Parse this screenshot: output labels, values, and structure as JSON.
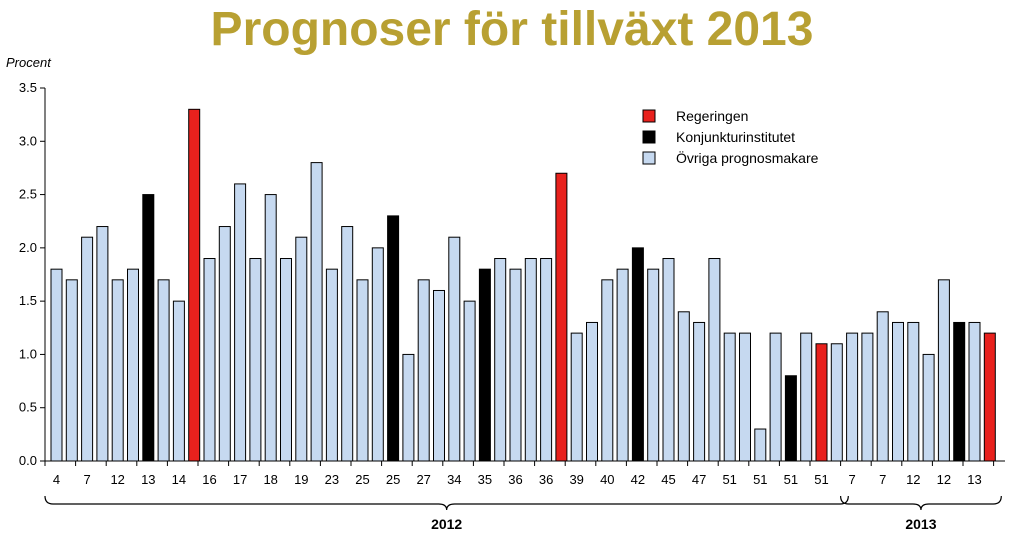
{
  "page": {
    "title": "Prognoser för tillväxt 2013"
  },
  "chart_data": {
    "type": "bar",
    "title": "Prognoser för tillväxt 2013",
    "ylabel": "Procent",
    "ylim": [
      0,
      3.5
    ],
    "yticks": [
      "0.0",
      "0.5",
      "1.0",
      "1.5",
      "2.0",
      "2.5",
      "3.0",
      "3.5"
    ],
    "colors": {
      "regeringen": "#e8211d",
      "ki": "#000000",
      "ovriga": "#c6d9f0"
    },
    "legend": [
      {
        "label": "Regeringen",
        "kind": "regeringen"
      },
      {
        "label": "Konjunkturinstitutet",
        "kind": "ki"
      },
      {
        "label": "Övriga prognosmakare",
        "kind": "ovriga"
      }
    ],
    "bars": [
      {
        "value": 1.8,
        "kind": "ovriga"
      },
      {
        "value": 1.7,
        "kind": "ovriga"
      },
      {
        "value": 2.1,
        "kind": "ovriga"
      },
      {
        "value": 2.2,
        "kind": "ovriga"
      },
      {
        "value": 1.7,
        "kind": "ovriga"
      },
      {
        "value": 1.8,
        "kind": "ovriga"
      },
      {
        "value": 2.5,
        "kind": "ki"
      },
      {
        "value": 1.7,
        "kind": "ovriga"
      },
      {
        "value": 1.5,
        "kind": "ovriga"
      },
      {
        "value": 3.3,
        "kind": "regeringen"
      },
      {
        "value": 1.9,
        "kind": "ovriga"
      },
      {
        "value": 2.2,
        "kind": "ovriga"
      },
      {
        "value": 2.6,
        "kind": "ovriga"
      },
      {
        "value": 1.9,
        "kind": "ovriga"
      },
      {
        "value": 2.5,
        "kind": "ovriga"
      },
      {
        "value": 1.9,
        "kind": "ovriga"
      },
      {
        "value": 2.1,
        "kind": "ovriga"
      },
      {
        "value": 2.8,
        "kind": "ovriga"
      },
      {
        "value": 1.8,
        "kind": "ovriga"
      },
      {
        "value": 2.2,
        "kind": "ovriga"
      },
      {
        "value": 1.7,
        "kind": "ovriga"
      },
      {
        "value": 2.0,
        "kind": "ovriga"
      },
      {
        "value": 2.3,
        "kind": "ki"
      },
      {
        "value": 1.0,
        "kind": "ovriga"
      },
      {
        "value": 1.7,
        "kind": "ovriga"
      },
      {
        "value": 1.6,
        "kind": "ovriga"
      },
      {
        "value": 2.1,
        "kind": "ovriga"
      },
      {
        "value": 1.5,
        "kind": "ovriga"
      },
      {
        "value": 1.8,
        "kind": "ki"
      },
      {
        "value": 1.9,
        "kind": "ovriga"
      },
      {
        "value": 1.8,
        "kind": "ovriga"
      },
      {
        "value": 1.9,
        "kind": "ovriga"
      },
      {
        "value": 1.9,
        "kind": "ovriga"
      },
      {
        "value": 2.7,
        "kind": "regeringen"
      },
      {
        "value": 1.2,
        "kind": "ovriga"
      },
      {
        "value": 1.3,
        "kind": "ovriga"
      },
      {
        "value": 1.7,
        "kind": "ovriga"
      },
      {
        "value": 1.8,
        "kind": "ovriga"
      },
      {
        "value": 2.0,
        "kind": "ki"
      },
      {
        "value": 1.8,
        "kind": "ovriga"
      },
      {
        "value": 1.9,
        "kind": "ovriga"
      },
      {
        "value": 1.4,
        "kind": "ovriga"
      },
      {
        "value": 1.3,
        "kind": "ovriga"
      },
      {
        "value": 1.9,
        "kind": "ovriga"
      },
      {
        "value": 1.2,
        "kind": "ovriga"
      },
      {
        "value": 1.2,
        "kind": "ovriga"
      },
      {
        "value": 0.3,
        "kind": "ovriga"
      },
      {
        "value": 1.2,
        "kind": "ovriga"
      },
      {
        "value": 0.8,
        "kind": "ki"
      },
      {
        "value": 1.2,
        "kind": "ovriga"
      },
      {
        "value": 1.1,
        "kind": "regeringen"
      },
      {
        "value": 1.1,
        "kind": "ovriga"
      },
      {
        "value": 1.2,
        "kind": "ovriga"
      },
      {
        "value": 1.2,
        "kind": "ovriga"
      },
      {
        "value": 1.4,
        "kind": "ovriga"
      },
      {
        "value": 1.3,
        "kind": "ovriga"
      },
      {
        "value": 1.3,
        "kind": "ovriga"
      },
      {
        "value": 1.0,
        "kind": "ovriga"
      },
      {
        "value": 1.7,
        "kind": "ovriga"
      },
      {
        "value": 1.3,
        "kind": "ki"
      },
      {
        "value": 1.3,
        "kind": "ovriga"
      },
      {
        "value": 1.2,
        "kind": "regeringen"
      }
    ],
    "week_labels": [
      {
        "label": "4",
        "bar": 0
      },
      {
        "label": "7",
        "bar": 2
      },
      {
        "label": "12",
        "bar": 4
      },
      {
        "label": "13",
        "bar": 6
      },
      {
        "label": "14",
        "bar": 8
      },
      {
        "label": "16",
        "bar": 10
      },
      {
        "label": "17",
        "bar": 12
      },
      {
        "label": "18",
        "bar": 14
      },
      {
        "label": "19",
        "bar": 16
      },
      {
        "label": "23",
        "bar": 18
      },
      {
        "label": "25",
        "bar": 20
      },
      {
        "label": "25",
        "bar": 22
      },
      {
        "label": "27",
        "bar": 24
      },
      {
        "label": "34",
        "bar": 26
      },
      {
        "label": "35",
        "bar": 28
      },
      {
        "label": "36",
        "bar": 30
      },
      {
        "label": "36",
        "bar": 32
      },
      {
        "label": "39",
        "bar": 34
      },
      {
        "label": "40",
        "bar": 36
      },
      {
        "label": "42",
        "bar": 38
      },
      {
        "label": "45",
        "bar": 40
      },
      {
        "label": "47",
        "bar": 42
      },
      {
        "label": "51",
        "bar": 44
      },
      {
        "label": "51",
        "bar": 46
      },
      {
        "label": "51",
        "bar": 48
      },
      {
        "label": "51",
        "bar": 50
      },
      {
        "label": "7",
        "bar": 52
      },
      {
        "label": "7",
        "bar": 54
      },
      {
        "label": "12",
        "bar": 56
      },
      {
        "label": "12",
        "bar": 58
      },
      {
        "label": "13",
        "bar": 60
      }
    ],
    "years": [
      {
        "label": "2012",
        "start": 0,
        "end": 51
      },
      {
        "label": "2013",
        "start": 52,
        "end": 61
      }
    ]
  }
}
